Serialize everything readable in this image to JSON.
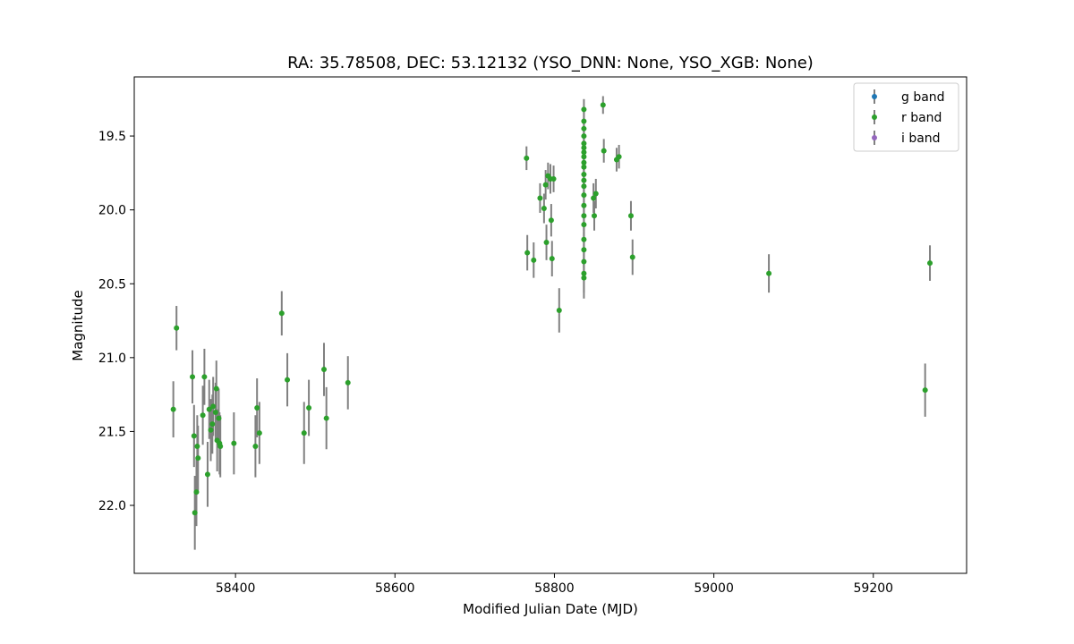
{
  "chart_data": {
    "type": "scatter",
    "title": "RA: 35.78508, DEC: 53.12132 (YSO_DNN: None, YSO_XGB: None)",
    "xlabel": "Modified Julian Date (MJD)",
    "ylabel": "Magnitude",
    "xlim": [
      58273,
      59317
    ],
    "ylim": [
      22.46,
      19.1
    ],
    "y_inverted": true,
    "x_ticks": [
      58400,
      58600,
      58800,
      59000,
      59200
    ],
    "y_ticks": [
      19.5,
      20.0,
      20.5,
      21.0,
      21.5,
      22.0
    ],
    "x_tick_labels": [
      "58400",
      "58600",
      "58800",
      "59000",
      "59200"
    ],
    "y_tick_labels": [
      "19.5",
      "20.0",
      "20.5",
      "21.0",
      "21.5",
      "22.0"
    ],
    "grid": false,
    "legend_position": "top-right",
    "error_bar_color": "#808080",
    "series": [
      {
        "name": "g band",
        "color": "#1f77b4",
        "points": []
      },
      {
        "name": "r band",
        "color": "#2ca02c",
        "points": [
          [
            58322,
            21.35,
            0.19
          ],
          [
            58326,
            20.8,
            0.15
          ],
          [
            58346,
            21.13,
            0.18
          ],
          [
            58348,
            21.53,
            0.21
          ],
          [
            58349,
            22.05,
            0.25
          ],
          [
            58351,
            21.91,
            0.23
          ],
          [
            58352,
            21.6,
            0.21
          ],
          [
            58353,
            21.68,
            0.22
          ],
          [
            58359,
            21.39,
            0.2
          ],
          [
            58361,
            21.13,
            0.19
          ],
          [
            58365,
            21.79,
            0.22
          ],
          [
            58367,
            21.35,
            0.2
          ],
          [
            58369,
            21.49,
            0.21
          ],
          [
            58371,
            21.45,
            0.2
          ],
          [
            58372,
            21.33,
            0.2
          ],
          [
            58375,
            21.37,
            0.2
          ],
          [
            58376,
            21.21,
            0.19
          ],
          [
            58377,
            21.56,
            0.21
          ],
          [
            58379,
            21.41,
            0.2
          ],
          [
            58380,
            21.58,
            0.21
          ],
          [
            58381,
            21.6,
            0.21
          ],
          [
            58398,
            21.58,
            0.21
          ],
          [
            58425,
            21.6,
            0.21
          ],
          [
            58427,
            21.34,
            0.2
          ],
          [
            58430,
            21.51,
            0.21
          ],
          [
            58458,
            20.7,
            0.15
          ],
          [
            58465,
            21.15,
            0.18
          ],
          [
            58486,
            21.51,
            0.21
          ],
          [
            58492,
            21.34,
            0.19
          ],
          [
            58511,
            21.08,
            0.18
          ],
          [
            58514,
            21.41,
            0.21
          ],
          [
            58541,
            21.17,
            0.18
          ],
          [
            58765,
            19.65,
            0.08
          ],
          [
            58766,
            20.29,
            0.12
          ],
          [
            58774,
            20.34,
            0.12
          ],
          [
            58782,
            19.92,
            0.1
          ],
          [
            58787,
            19.99,
            0.1
          ],
          [
            58789,
            19.83,
            0.1
          ],
          [
            58790,
            20.22,
            0.12
          ],
          [
            58792,
            19.77,
            0.09
          ],
          [
            58795,
            19.79,
            0.1
          ],
          [
            58796,
            20.07,
            0.11
          ],
          [
            58797,
            20.33,
            0.12
          ],
          [
            58799,
            19.79,
            0.09
          ],
          [
            58806,
            20.68,
            0.15
          ],
          [
            58837,
            19.32,
            0.07
          ],
          [
            58837,
            19.4,
            0.07
          ],
          [
            58837,
            19.45,
            0.07
          ],
          [
            58837,
            19.5,
            0.07
          ],
          [
            58837,
            19.55,
            0.08
          ],
          [
            58837,
            19.58,
            0.08
          ],
          [
            58837,
            19.61,
            0.08
          ],
          [
            58837,
            19.64,
            0.08
          ],
          [
            58837,
            19.68,
            0.08
          ],
          [
            58837,
            19.71,
            0.08
          ],
          [
            58837,
            19.76,
            0.09
          ],
          [
            58837,
            19.8,
            0.09
          ],
          [
            58837,
            19.84,
            0.09
          ],
          [
            58837,
            19.9,
            0.09
          ],
          [
            58837,
            19.97,
            0.1
          ],
          [
            58837,
            20.04,
            0.1
          ],
          [
            58837,
            20.1,
            0.11
          ],
          [
            58837,
            20.2,
            0.11
          ],
          [
            58837,
            20.27,
            0.12
          ],
          [
            58837,
            20.35,
            0.12
          ],
          [
            58837,
            20.43,
            0.13
          ],
          [
            58837,
            20.46,
            0.14
          ],
          [
            58849,
            19.92,
            0.1
          ],
          [
            58850,
            20.04,
            0.1
          ],
          [
            58852,
            19.89,
            0.1
          ],
          [
            58861,
            19.29,
            0.06
          ],
          [
            58862,
            19.6,
            0.08
          ],
          [
            58878,
            19.66,
            0.08
          ],
          [
            58881,
            19.64,
            0.08
          ],
          [
            58896,
            20.04,
            0.1
          ],
          [
            58898,
            20.32,
            0.12
          ],
          [
            59069,
            20.43,
            0.13
          ],
          [
            59265,
            21.22,
            0.18
          ],
          [
            59271,
            20.36,
            0.12
          ]
        ]
      },
      {
        "name": "i band",
        "color": "#9467bd",
        "points": []
      }
    ]
  }
}
